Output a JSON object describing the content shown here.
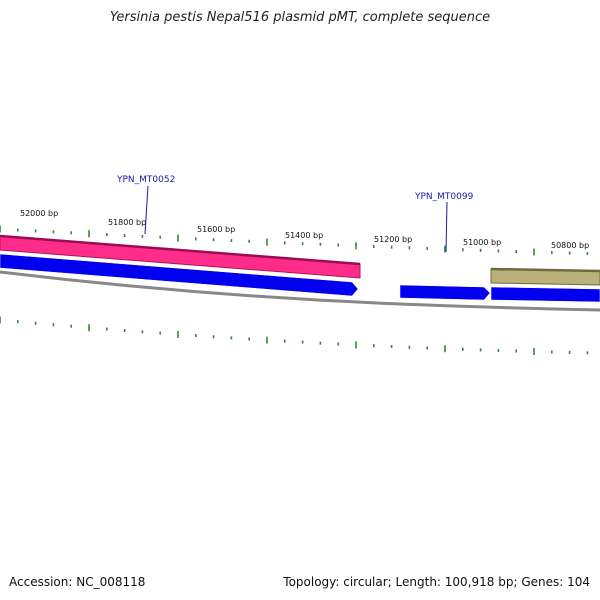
{
  "title": "Yersinia pestis Nepal516 plasmid pMT, complete sequence",
  "footer": {
    "accession": "Accession: NC_008118",
    "summary": "Topology: circular; Length: 100,918 bp; Genes: 104"
  },
  "scale_labels": [
    "52000 bp",
    "51800 bp",
    "51600 bp",
    "51400 bp",
    "51200 bp",
    "51000 bp",
    "50800 bp"
  ],
  "gene_labels": [
    "YPN_MT0052",
    "YPN_MT0099"
  ],
  "colors": {
    "pink_track": "#ff2d8a",
    "pink_edge": "#b01060",
    "blue_gene": "#0000ee",
    "olive_track": "#b9b07a",
    "olive_edge": "#6f6a40",
    "backbone": "#888888",
    "tick": "#2e8b2e",
    "label_line": "#1a1aa6"
  }
}
